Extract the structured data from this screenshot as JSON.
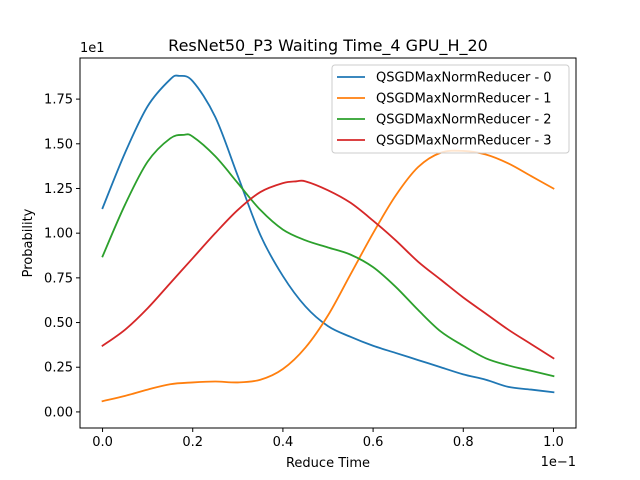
{
  "chart_data": {
    "type": "line",
    "title": "ResNet50_P3 Waiting Time_4 GPU_H_20",
    "xlabel": "Reduce Time",
    "ylabel": "Probability",
    "x_offset_text": "1e−1",
    "y_offset_text": "1e1",
    "xlim": [
      -0.05,
      1.05
    ],
    "ylim": [
      -0.09,
      1.98
    ],
    "x_ticks": [
      0.0,
      0.2,
      0.4,
      0.6,
      0.8,
      1.0
    ],
    "x_tick_labels": [
      "0.0",
      "0.2",
      "0.4",
      "0.6",
      "0.8",
      "1.0"
    ],
    "y_ticks": [
      0.0,
      0.25,
      0.5,
      0.75,
      1.0,
      1.25,
      1.5,
      1.75
    ],
    "y_tick_labels": [
      "0.00",
      "0.25",
      "0.50",
      "0.75",
      "1.00",
      "1.25",
      "1.50",
      "1.75"
    ],
    "grid": false,
    "legend_position": "top-right",
    "series": [
      {
        "name": "QSGDMaxNormReducer - 0",
        "color": "#1f77b4",
        "x": [
          0.0,
          0.05,
          0.1,
          0.15,
          0.17,
          0.2,
          0.25,
          0.3,
          0.35,
          0.4,
          0.45,
          0.5,
          0.55,
          0.6,
          0.65,
          0.7,
          0.75,
          0.8,
          0.85,
          0.9,
          0.95,
          1.0
        ],
        "y": [
          1.14,
          1.45,
          1.71,
          1.86,
          1.88,
          1.85,
          1.65,
          1.32,
          0.99,
          0.76,
          0.59,
          0.48,
          0.42,
          0.37,
          0.33,
          0.29,
          0.25,
          0.21,
          0.18,
          0.14,
          0.125,
          0.11
        ]
      },
      {
        "name": "QSGDMaxNormReducer - 1",
        "color": "#ff7f0e",
        "x": [
          0.0,
          0.05,
          0.1,
          0.15,
          0.2,
          0.25,
          0.3,
          0.35,
          0.4,
          0.45,
          0.5,
          0.55,
          0.6,
          0.65,
          0.7,
          0.75,
          0.8,
          0.85,
          0.9,
          0.95,
          1.0
        ],
        "y": [
          0.06,
          0.09,
          0.125,
          0.155,
          0.165,
          0.17,
          0.165,
          0.18,
          0.24,
          0.36,
          0.54,
          0.77,
          1.0,
          1.21,
          1.37,
          1.45,
          1.46,
          1.44,
          1.39,
          1.32,
          1.25
        ]
      },
      {
        "name": "QSGDMaxNormReducer - 2",
        "color": "#2ca02c",
        "x": [
          0.0,
          0.05,
          0.1,
          0.15,
          0.18,
          0.2,
          0.25,
          0.3,
          0.35,
          0.4,
          0.45,
          0.5,
          0.55,
          0.6,
          0.65,
          0.7,
          0.75,
          0.8,
          0.85,
          0.9,
          0.95,
          1.0
        ],
        "y": [
          0.87,
          1.16,
          1.4,
          1.53,
          1.55,
          1.54,
          1.43,
          1.28,
          1.13,
          1.02,
          0.96,
          0.92,
          0.88,
          0.81,
          0.7,
          0.57,
          0.45,
          0.37,
          0.3,
          0.26,
          0.23,
          0.2
        ]
      },
      {
        "name": "QSGDMaxNormReducer - 3",
        "color": "#d62728",
        "x": [
          0.0,
          0.05,
          0.1,
          0.15,
          0.2,
          0.25,
          0.3,
          0.35,
          0.4,
          0.43,
          0.45,
          0.5,
          0.55,
          0.6,
          0.65,
          0.7,
          0.75,
          0.8,
          0.85,
          0.9,
          0.95,
          1.0
        ],
        "y": [
          0.37,
          0.46,
          0.58,
          0.72,
          0.86,
          1.0,
          1.13,
          1.23,
          1.28,
          1.29,
          1.29,
          1.24,
          1.17,
          1.07,
          0.96,
          0.84,
          0.74,
          0.64,
          0.55,
          0.46,
          0.38,
          0.3
        ]
      }
    ]
  }
}
